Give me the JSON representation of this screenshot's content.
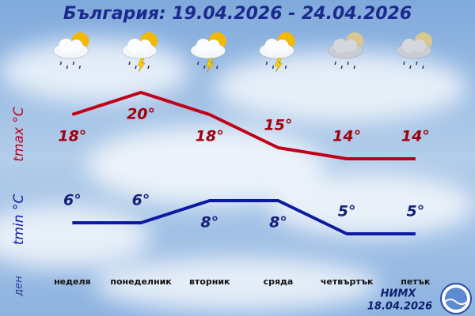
{
  "chart_data": {
    "type": "line",
    "title": "България: 19.04.2026 - 24.04.2026",
    "categories": [
      "неделя",
      "понеделник",
      "вторник",
      "сряда",
      "четвъртък",
      "петък"
    ],
    "ylabel": "tmax °C",
    "y2label": "tmin °C",
    "xlabel": "ден",
    "ylim": [
      13,
      21
    ],
    "y2lim": [
      4,
      9
    ],
    "series": [
      {
        "color": "#c0001a",
        "values": [
          18,
          20,
          18,
          15,
          14,
          14
        ],
        "value_labels": [
          "18°",
          "20°",
          "18°",
          "15°",
          "14°",
          "14°"
        ]
      },
      {
        "color": "#0c1aa0",
        "axis": "y2",
        "values": [
          6,
          6,
          8,
          8,
          5,
          5
        ],
        "value_labels": [
          "6°",
          "6°",
          "8°",
          "8°",
          "5°",
          "5°"
        ]
      }
    ],
    "source": "НИМХ",
    "issued": "18.04.2026"
  }
}
